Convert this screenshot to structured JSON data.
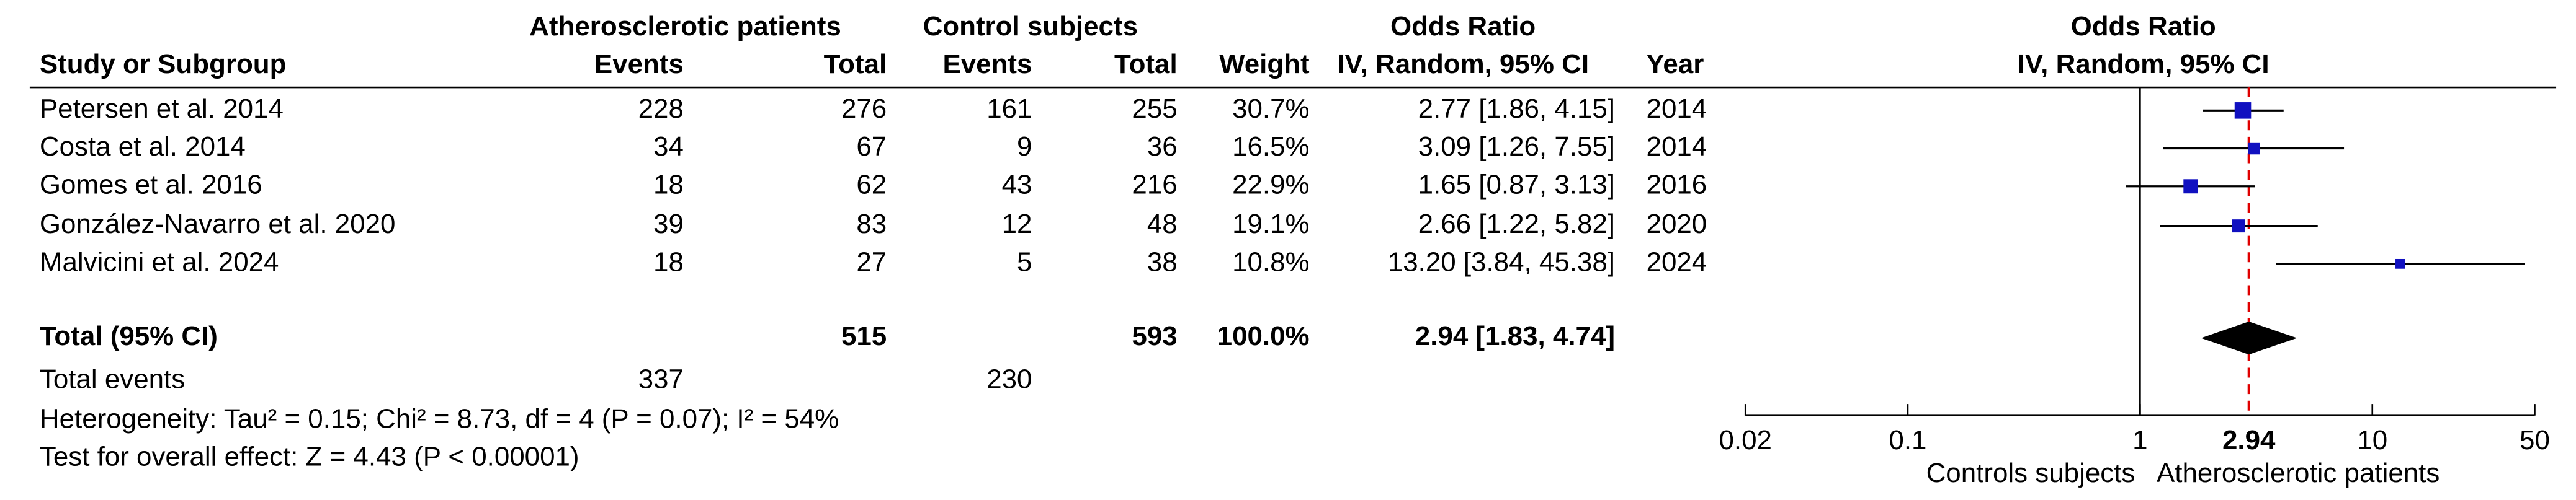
{
  "table": {
    "group_headers": [
      "Atherosclerotic patients",
      "Control subjects",
      "Odds Ratio"
    ],
    "columns": [
      "Study or Subgroup",
      "Events",
      "Total",
      "Events",
      "Total",
      "Weight",
      "IV, Random, 95% CI",
      "Year"
    ],
    "rows": [
      [
        "Petersen et al. 2014",
        "228",
        "276",
        "161",
        "255",
        "30.7%",
        "2.77 [1.86, 4.15]",
        "2014"
      ],
      [
        "Costa et al. 2014",
        "34",
        "67",
        "9",
        "36",
        "16.5%",
        "3.09 [1.26, 7.55]",
        "2014"
      ],
      [
        "Gomes et al. 2016",
        "18",
        "62",
        "43",
        "216",
        "22.9%",
        "1.65 [0.87, 3.13]",
        "2016"
      ],
      [
        "González-Navarro et al. 2020",
        "39",
        "83",
        "12",
        "48",
        "19.1%",
        "2.66 [1.22, 5.82]",
        "2020"
      ],
      [
        "Malvicini et al. 2024",
        "18",
        "27",
        "5",
        "38",
        "10.8%",
        "13.20 [3.84, 45.38]",
        "2024"
      ]
    ],
    "total_row": [
      "Total (95% CI)",
      "515",
      "593",
      "100.0%",
      "2.94 [1.83, 4.74]"
    ],
    "total_events": [
      "Total events",
      "337",
      "230"
    ],
    "heterogeneity": "Heterogeneity: Tau² = 0.15; Chi² = 8.73, df = 4 (P = 0.07); I² = 54%",
    "overall_effect": "Test for overall effect: Z = 4.43 (P < 0.00001)"
  },
  "chart_data": {
    "type": "forest",
    "title": "Odds Ratio",
    "subtitle": "IV, Random, 95% CI",
    "values": [
      2.77,
      3.09,
      1.65,
      2.66,
      13.2
    ],
    "ci_low": [
      1.86,
      1.26,
      0.87,
      1.22,
      3.84
    ],
    "ci_high": [
      4.15,
      7.55,
      3.13,
      5.82,
      45.38
    ],
    "weights": [
      30.7,
      16.5,
      22.9,
      19.1,
      10.8
    ],
    "pooled": {
      "value": 2.94,
      "ci_low": 1.83,
      "ci_high": 4.74
    },
    "xlim": [
      0.02,
      50
    ],
    "xticks": [
      0.02,
      0.1,
      1,
      10,
      50
    ],
    "log_x": true,
    "null_value": 1,
    "x_label_left": "Controls subjects",
    "x_label_right": "Atherosclerotic patients",
    "marker_color": "#1010c0",
    "ci_color": "#000000",
    "pooled_color": "#000000",
    "pooled_line_color": "#e00000"
  }
}
